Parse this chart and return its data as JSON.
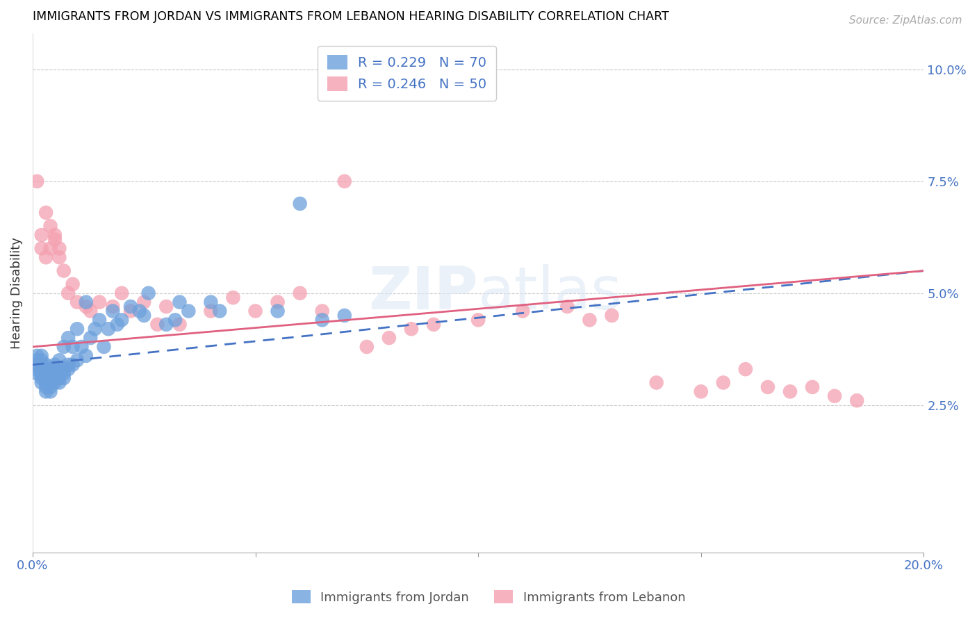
{
  "title": "IMMIGRANTS FROM JORDAN VS IMMIGRANTS FROM LEBANON HEARING DISABILITY CORRELATION CHART",
  "source": "Source: ZipAtlas.com",
  "ylabel": "Hearing Disability",
  "xlim": [
    0.0,
    0.2
  ],
  "ylim": [
    -0.008,
    0.108
  ],
  "y_ticks": [
    0.025,
    0.05,
    0.075,
    0.1
  ],
  "y_tick_labels": [
    "2.5%",
    "5.0%",
    "7.5%",
    "10.0%"
  ],
  "jordan_R": 0.229,
  "jordan_N": 70,
  "lebanon_R": 0.246,
  "lebanon_N": 50,
  "jordan_color": "#6ca0dc",
  "lebanon_color": "#f4a0b0",
  "jordan_line_color": "#4472c4",
  "lebanon_line_color": "#e06080",
  "jordan_x": [
    0.001,
    0.001,
    0.001,
    0.001,
    0.001,
    0.002,
    0.002,
    0.002,
    0.002,
    0.002,
    0.002,
    0.002,
    0.003,
    0.003,
    0.003,
    0.003,
    0.003,
    0.003,
    0.003,
    0.004,
    0.004,
    0.004,
    0.004,
    0.004,
    0.004,
    0.005,
    0.005,
    0.005,
    0.005,
    0.005,
    0.006,
    0.006,
    0.006,
    0.006,
    0.007,
    0.007,
    0.007,
    0.007,
    0.008,
    0.008,
    0.008,
    0.009,
    0.009,
    0.01,
    0.01,
    0.011,
    0.012,
    0.012,
    0.013,
    0.014,
    0.015,
    0.016,
    0.017,
    0.018,
    0.019,
    0.02,
    0.022,
    0.024,
    0.025,
    0.026,
    0.03,
    0.032,
    0.033,
    0.035,
    0.04,
    0.042,
    0.055,
    0.06,
    0.065,
    0.07
  ],
  "jordan_y": [
    0.032,
    0.033,
    0.034,
    0.035,
    0.036,
    0.03,
    0.031,
    0.032,
    0.033,
    0.034,
    0.035,
    0.036,
    0.028,
    0.029,
    0.03,
    0.031,
    0.032,
    0.033,
    0.034,
    0.028,
    0.029,
    0.03,
    0.031,
    0.032,
    0.033,
    0.03,
    0.031,
    0.032,
    0.033,
    0.034,
    0.03,
    0.031,
    0.032,
    0.035,
    0.031,
    0.032,
    0.033,
    0.038,
    0.033,
    0.034,
    0.04,
    0.034,
    0.038,
    0.035,
    0.042,
    0.038,
    0.036,
    0.048,
    0.04,
    0.042,
    0.044,
    0.038,
    0.042,
    0.046,
    0.043,
    0.044,
    0.047,
    0.046,
    0.045,
    0.05,
    0.043,
    0.044,
    0.048,
    0.046,
    0.048,
    0.046,
    0.046,
    0.07,
    0.044,
    0.045
  ],
  "lebanon_x": [
    0.001,
    0.002,
    0.002,
    0.003,
    0.003,
    0.004,
    0.004,
    0.005,
    0.005,
    0.006,
    0.006,
    0.007,
    0.008,
    0.009,
    0.01,
    0.012,
    0.013,
    0.015,
    0.018,
    0.02,
    0.022,
    0.025,
    0.028,
    0.03,
    0.033,
    0.04,
    0.045,
    0.05,
    0.055,
    0.06,
    0.065,
    0.07,
    0.075,
    0.08,
    0.085,
    0.09,
    0.1,
    0.11,
    0.12,
    0.125,
    0.13,
    0.14,
    0.15,
    0.155,
    0.16,
    0.165,
    0.17,
    0.175,
    0.18,
    0.185
  ],
  "lebanon_y": [
    0.075,
    0.06,
    0.063,
    0.058,
    0.068,
    0.065,
    0.06,
    0.062,
    0.063,
    0.058,
    0.06,
    0.055,
    0.05,
    0.052,
    0.048,
    0.047,
    0.046,
    0.048,
    0.047,
    0.05,
    0.046,
    0.048,
    0.043,
    0.047,
    0.043,
    0.046,
    0.049,
    0.046,
    0.048,
    0.05,
    0.046,
    0.075,
    0.038,
    0.04,
    0.042,
    0.043,
    0.044,
    0.046,
    0.047,
    0.044,
    0.045,
    0.03,
    0.028,
    0.03,
    0.033,
    0.029,
    0.028,
    0.029,
    0.027,
    0.026
  ],
  "jordan_line_x": [
    0.0,
    0.2
  ],
  "jordan_line_y": [
    0.034,
    0.055
  ],
  "lebanon_line_x": [
    0.0,
    0.2
  ],
  "lebanon_line_y": [
    0.038,
    0.055
  ]
}
